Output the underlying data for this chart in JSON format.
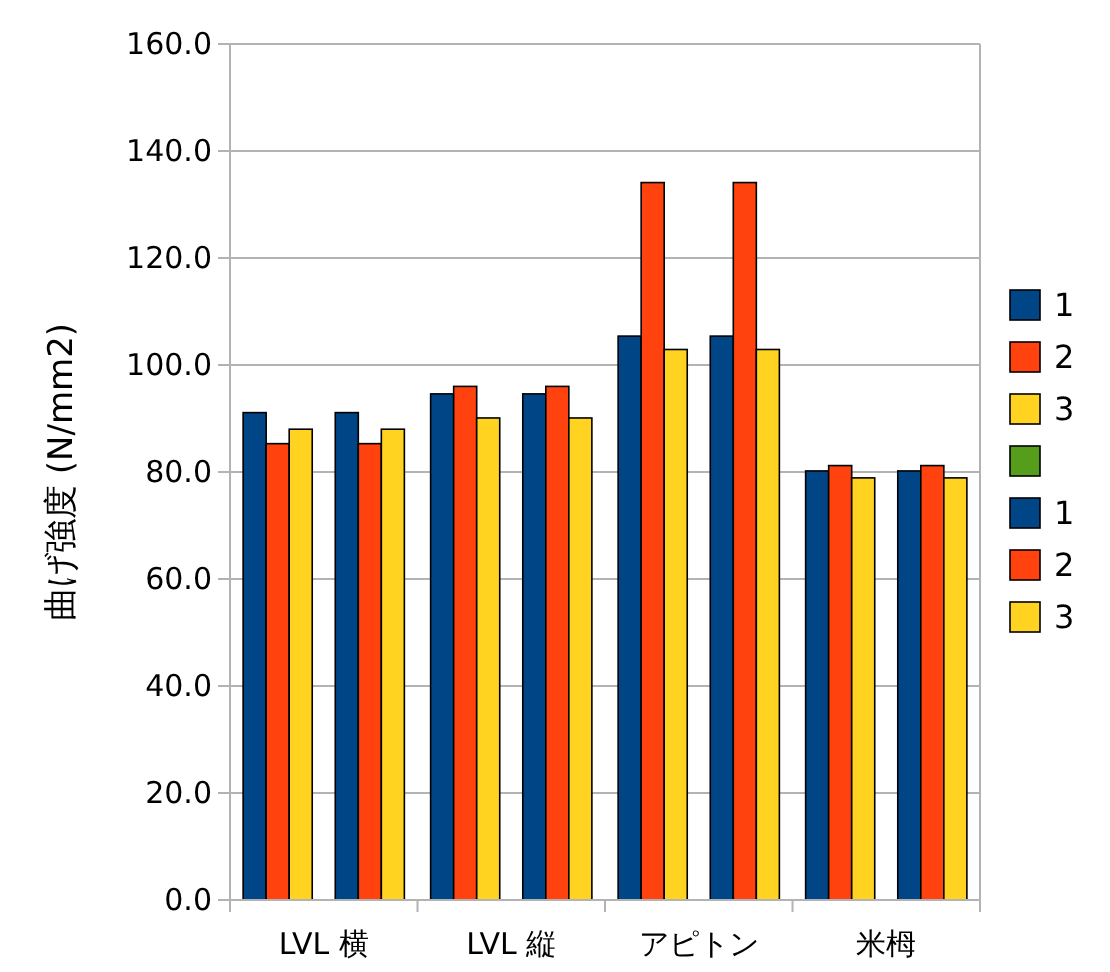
{
  "chart_data": {
    "type": "bar",
    "ylabel": "曲げ強度 (N/mm2)",
    "categories": [
      "LVL 横",
      "LVL 縦",
      "アピトン",
      "米栂"
    ],
    "series": [
      {
        "name": "1",
        "color": "#004586",
        "values": [
          91.1,
          94.6,
          105.4,
          80.2
        ]
      },
      {
        "name": "2",
        "color": "#ff420e",
        "values": [
          85.3,
          96.0,
          134.1,
          81.2
        ]
      },
      {
        "name": "3",
        "color": "#ffd320",
        "values": [
          88.0,
          90.1,
          102.9,
          78.9
        ]
      },
      {
        "color": "#579d1c",
        "values": [
          null,
          null,
          null,
          null
        ]
      },
      {
        "name": "1",
        "color": "#004586",
        "values": [
          91.1,
          94.6,
          105.4,
          80.2
        ]
      },
      {
        "name": "2",
        "color": "#ff420e",
        "values": [
          85.3,
          96.0,
          134.1,
          81.2
        ]
      },
      {
        "name": "3",
        "color": "#ffd320",
        "values": [
          88.0,
          90.1,
          102.9,
          78.9
        ]
      }
    ],
    "ylim": [
      0,
      160
    ],
    "yticks": [
      {
        "value": 0,
        "label": "0.0"
      },
      {
        "value": 20,
        "label": "20.0"
      },
      {
        "value": 40,
        "label": "40.0"
      },
      {
        "value": 60,
        "label": "60.0"
      },
      {
        "value": 80,
        "label": "80.0"
      },
      {
        "value": 100,
        "label": "100.0"
      },
      {
        "value": 120,
        "label": "120.0"
      },
      {
        "value": 140,
        "label": "140.0"
      },
      {
        "value": 160,
        "label": "160.0"
      }
    ],
    "grid": "y",
    "legend": "right"
  }
}
